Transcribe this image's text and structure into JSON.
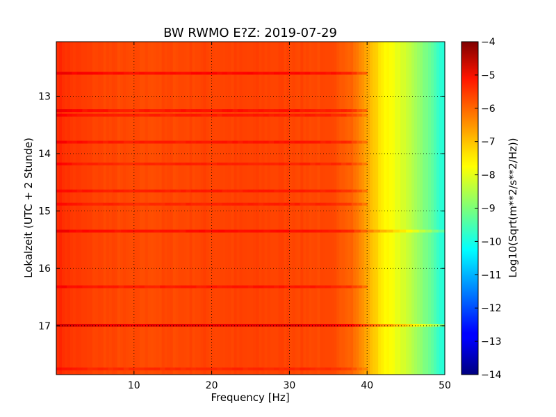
{
  "chart_data": {
    "type": "heatmap",
    "title": "BW RWMO E?Z: 2019-07-29",
    "xlabel": "Frequency [Hz]",
    "ylabel": "Lokalzeit (UTC + 2 Stunde)",
    "xlim": [
      0,
      50
    ],
    "ylim": [
      17.85,
      12.05
    ],
    "x_ticks": [
      "10",
      "20",
      "30",
      "40",
      "50"
    ],
    "y_ticks": [
      "13",
      "14",
      "15",
      "16",
      "17"
    ],
    "grid": true,
    "colormap": "jet",
    "colorbar": {
      "label": "Log10(Sqrt(m**2/s**2/Hz))",
      "range": [
        -14,
        -4
      ],
      "ticks": [
        "-4",
        "-5",
        "-6",
        "-7",
        "-8",
        "-9",
        "-10",
        "-11",
        "-12",
        "-13",
        "-14"
      ]
    },
    "spectral_profile": {
      "freq_hz": [
        0,
        2,
        5,
        10,
        20,
        30,
        36,
        38,
        40,
        42,
        44,
        46,
        48,
        50
      ],
      "log10_amplitude": [
        -5.6,
        -5.8,
        -5.9,
        -6.0,
        -5.9,
        -5.9,
        -6.0,
        -6.2,
        -6.9,
        -7.6,
        -8.0,
        -8.5,
        -9.2,
        -10.0
      ]
    },
    "bands": [
      {
        "time": 12.6,
        "fmax": 40,
        "delta": 0.6
      },
      {
        "time": 13.25,
        "fmax": 40,
        "delta": 0.5
      },
      {
        "time": 13.33,
        "fmax": 40,
        "delta": 0.4
      },
      {
        "time": 13.8,
        "fmax": 40,
        "delta": 0.45
      },
      {
        "time": 14.18,
        "fmax": 40,
        "delta": 0.35
      },
      {
        "time": 14.65,
        "fmax": 40,
        "delta": 0.4
      },
      {
        "time": 14.88,
        "fmax": 40,
        "delta": 0.35
      },
      {
        "time": 15.35,
        "fmax": 50,
        "delta": 0.55
      },
      {
        "time": 16.32,
        "fmax": 40,
        "delta": 0.45
      },
      {
        "time": 16.99,
        "fmax": 50,
        "delta": 0.9
      },
      {
        "time": 17.75,
        "fmax": 40,
        "delta": 0.3
      }
    ]
  }
}
